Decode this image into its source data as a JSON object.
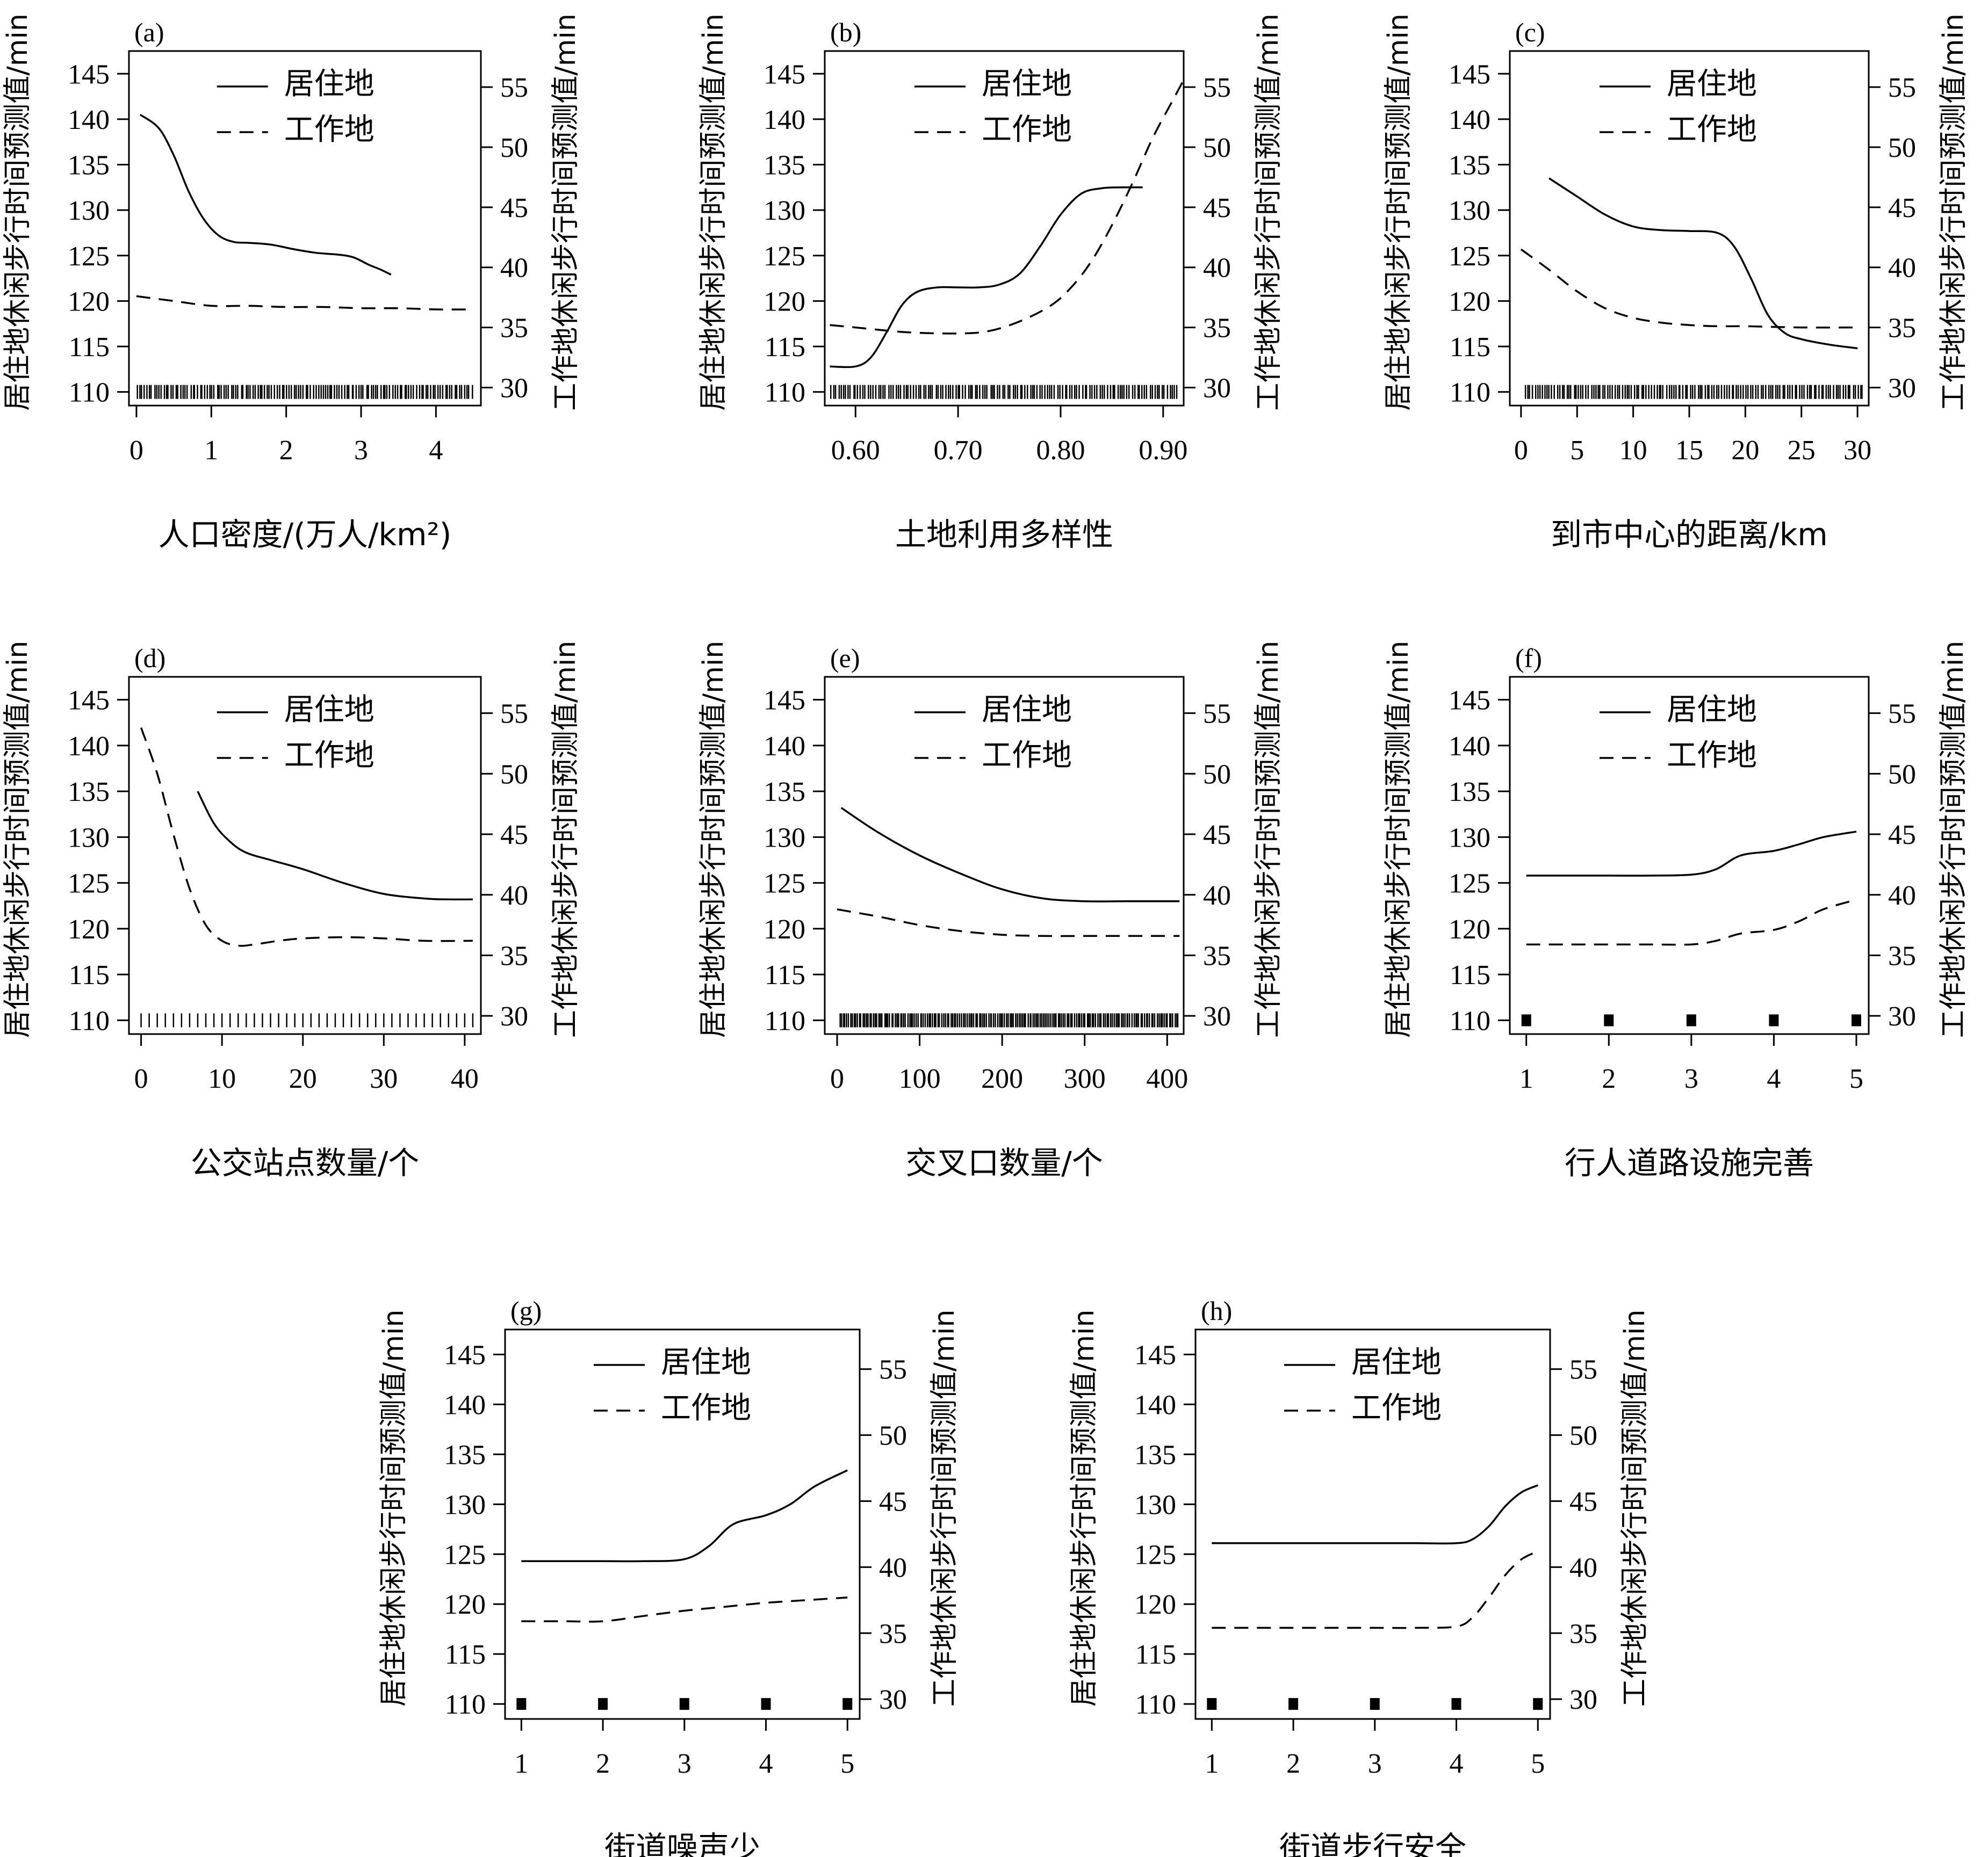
{
  "legend": {
    "residence": "居住地",
    "workplace": "工作地"
  },
  "y_left_label": "居住地休闲步行时间预测值/min",
  "y_right_label": "工作地休闲步行时间预测值/min",
  "colors": {
    "line": "#000000",
    "axis": "#000000",
    "background": "#ffffff"
  },
  "chart_data": [
    {
      "panel": "(a)",
      "type": "line",
      "xlabel": "人口密度/(万人/km²)",
      "xlim": [
        -0.1,
        4.6
      ],
      "xticks": [
        0,
        1,
        2,
        3,
        4
      ],
      "ylim": [
        108.5,
        147.5
      ],
      "yticks": [
        110,
        115,
        120,
        125,
        130,
        135,
        140,
        145
      ],
      "y2lim": [
        28.5,
        58
      ],
      "y2ticks": [
        30,
        35,
        40,
        45,
        50,
        55
      ],
      "series": [
        {
          "name": "居住地",
          "axis": "left",
          "style": "solid",
          "x": [
            0.05,
            0.3,
            0.5,
            0.7,
            0.9,
            1.1,
            1.3,
            1.5,
            1.8,
            2.1,
            2.4,
            2.7,
            2.9,
            3.1,
            3.25,
            3.4
          ],
          "y": [
            140.5,
            139.0,
            136.0,
            132.0,
            129.0,
            127.2,
            126.5,
            126.4,
            126.2,
            125.7,
            125.3,
            125.1,
            124.8,
            124.0,
            123.5,
            122.9
          ]
        },
        {
          "name": "工作地",
          "axis": "right",
          "style": "dashed",
          "x": [
            0.0,
            0.5,
            1.0,
            1.5,
            2.0,
            2.5,
            3.0,
            3.5,
            4.0,
            4.5
          ],
          "y": [
            37.6,
            37.2,
            36.8,
            36.8,
            36.7,
            36.7,
            36.6,
            36.6,
            36.5,
            36.5
          ]
        }
      ],
      "rug": {
        "type": "dense",
        "from": 0.0,
        "to": 4.5,
        "count": 140
      }
    },
    {
      "panel": "(b)",
      "type": "line",
      "xlabel": "土地利用多样性",
      "xlim": [
        0.57,
        0.92
      ],
      "xticks": [
        0.6,
        0.7,
        0.8,
        0.9
      ],
      "ylim": [
        108.5,
        147.5
      ],
      "yticks": [
        110,
        115,
        120,
        125,
        130,
        135,
        140,
        145
      ],
      "y2lim": [
        28.5,
        58
      ],
      "y2ticks": [
        30,
        35,
        40,
        45,
        50,
        55
      ],
      "series": [
        {
          "name": "居住地",
          "axis": "left",
          "style": "solid",
          "x": [
            0.575,
            0.6,
            0.615,
            0.63,
            0.645,
            0.66,
            0.68,
            0.7,
            0.72,
            0.74,
            0.76,
            0.78,
            0.8,
            0.82,
            0.84,
            0.86,
            0.88
          ],
          "y": [
            112.8,
            112.8,
            113.8,
            116.5,
            119.5,
            121.0,
            121.5,
            121.5,
            121.5,
            121.8,
            123.0,
            126.0,
            129.5,
            131.8,
            132.4,
            132.5,
            132.5
          ]
        },
        {
          "name": "工作地",
          "axis": "right",
          "style": "dashed",
          "x": [
            0.575,
            0.6,
            0.65,
            0.7,
            0.73,
            0.76,
            0.79,
            0.81,
            0.83,
            0.85,
            0.87,
            0.89,
            0.91,
            0.92
          ],
          "y": [
            35.2,
            35.0,
            34.6,
            34.5,
            34.7,
            35.5,
            36.8,
            38.3,
            40.5,
            43.5,
            47.0,
            50.8,
            54.0,
            55.6
          ]
        }
      ],
      "rug": {
        "type": "dense",
        "from": 0.575,
        "to": 0.915,
        "count": 140
      }
    },
    {
      "panel": "(c)",
      "type": "line",
      "xlabel": "到市中心的距离/km",
      "xlim": [
        -1,
        31
      ],
      "xticks": [
        0,
        5,
        10,
        15,
        20,
        25,
        30
      ],
      "ylim": [
        108.5,
        147.5
      ],
      "yticks": [
        110,
        115,
        120,
        125,
        130,
        135,
        140,
        145
      ],
      "y2lim": [
        28.5,
        58
      ],
      "y2ticks": [
        30,
        35,
        40,
        45,
        50,
        55
      ],
      "series": [
        {
          "name": "居住地",
          "axis": "left",
          "style": "solid",
          "x": [
            2.5,
            5,
            7.5,
            10,
            12.5,
            15,
            17.5,
            19,
            20.5,
            22,
            23.5,
            25,
            27.5,
            30
          ],
          "y": [
            133.5,
            131.5,
            129.5,
            128.2,
            127.8,
            127.7,
            127.5,
            126.0,
            122.5,
            118.5,
            116.5,
            115.8,
            115.2,
            114.8
          ]
        },
        {
          "name": "工作地",
          "axis": "right",
          "style": "dashed",
          "x": [
            0,
            2.5,
            5,
            7.5,
            10,
            12.5,
            15,
            17.5,
            20,
            25,
            30
          ],
          "y": [
            41.5,
            39.8,
            38.0,
            36.6,
            35.8,
            35.4,
            35.2,
            35.1,
            35.1,
            35.0,
            35.0
          ]
        }
      ],
      "rug": {
        "type": "dense",
        "from": 0.3,
        "to": 30.6,
        "count": 140
      }
    },
    {
      "panel": "(d)",
      "type": "line",
      "xlabel": "公交站点数量/个",
      "xlim": [
        -1.5,
        42
      ],
      "xticks": [
        0,
        10,
        20,
        30,
        40
      ],
      "ylim": [
        108.5,
        147.5
      ],
      "yticks": [
        110,
        115,
        120,
        125,
        130,
        135,
        140,
        145
      ],
      "y2lim": [
        28.5,
        58
      ],
      "y2ticks": [
        30,
        35,
        40,
        45,
        50,
        55
      ],
      "series": [
        {
          "name": "居住地",
          "axis": "left",
          "style": "solid",
          "x": [
            7,
            9,
            11,
            13,
            16,
            20,
            25,
            30,
            35,
            38,
            41
          ],
          "y": [
            135.0,
            131.5,
            129.5,
            128.3,
            127.5,
            126.5,
            125.0,
            123.8,
            123.3,
            123.2,
            123.2
          ]
        },
        {
          "name": "工作地",
          "axis": "right",
          "style": "dashed",
          "x": [
            0,
            2,
            4,
            6,
            8,
            10,
            12,
            14,
            17,
            20,
            25,
            30,
            35,
            41
          ],
          "y": [
            53.8,
            50.0,
            45.0,
            40.5,
            37.5,
            36.2,
            35.8,
            35.9,
            36.2,
            36.4,
            36.5,
            36.4,
            36.2,
            36.2
          ]
        }
      ],
      "rug": {
        "type": "step",
        "from": 0,
        "to": 41,
        "step": 1
      }
    },
    {
      "panel": "(e)",
      "type": "line",
      "xlabel": "交叉口数量/个",
      "xlim": [
        -15,
        420
      ],
      "xticks": [
        0,
        100,
        200,
        300,
        400
      ],
      "ylim": [
        108.5,
        147.5
      ],
      "yticks": [
        110,
        115,
        120,
        125,
        130,
        135,
        140,
        145
      ],
      "y2lim": [
        28.5,
        58
      ],
      "y2ticks": [
        30,
        35,
        40,
        45,
        50,
        55
      ],
      "series": [
        {
          "name": "居住地",
          "axis": "left",
          "style": "solid",
          "x": [
            5,
            50,
            100,
            150,
            200,
            250,
            300,
            350,
            415
          ],
          "y": [
            133.2,
            130.5,
            128.0,
            126.0,
            124.3,
            123.3,
            123.0,
            123.0,
            123.0
          ]
        },
        {
          "name": "工作地",
          "axis": "right",
          "style": "dashed",
          "x": [
            0,
            50,
            100,
            150,
            200,
            250,
            300,
            350,
            415
          ],
          "y": [
            38.8,
            38.2,
            37.5,
            37.0,
            36.7,
            36.6,
            36.6,
            36.6,
            36.6
          ]
        }
      ],
      "rug": {
        "type": "dense",
        "from": 2,
        "to": 415,
        "count": 190
      }
    },
    {
      "panel": "(f)",
      "type": "line",
      "xlabel": "行人道路设施完善",
      "xlim": [
        0.8,
        5.15
      ],
      "xticks": [
        1,
        2,
        3,
        4,
        5
      ],
      "ylim": [
        108.5,
        147.5
      ],
      "yticks": [
        110,
        115,
        120,
        125,
        130,
        135,
        140,
        145
      ],
      "y2lim": [
        28.5,
        58
      ],
      "y2ticks": [
        30,
        35,
        40,
        45,
        50,
        55
      ],
      "series": [
        {
          "name": "居住地",
          "axis": "left",
          "style": "solid",
          "x": [
            1,
            1.5,
            2,
            2.5,
            3,
            3.3,
            3.6,
            4,
            4.3,
            4.6,
            5
          ],
          "y": [
            125.8,
            125.8,
            125.8,
            125.8,
            125.9,
            126.5,
            128.0,
            128.5,
            129.2,
            130.0,
            130.6
          ]
        },
        {
          "name": "工作地",
          "axis": "right",
          "style": "dashed",
          "x": [
            1,
            1.5,
            2,
            2.5,
            3,
            3.3,
            3.6,
            4,
            4.3,
            4.6,
            5
          ],
          "y": [
            35.9,
            35.9,
            35.9,
            35.9,
            35.9,
            36.2,
            36.8,
            37.1,
            37.8,
            38.8,
            39.6
          ]
        }
      ],
      "rug": {
        "type": "discrete",
        "values": [
          1,
          2,
          3,
          4,
          5
        ]
      }
    },
    {
      "panel": "(g)",
      "type": "line",
      "xlabel": "街道噪声少",
      "xlim": [
        0.8,
        5.15
      ],
      "xticks": [
        1,
        2,
        3,
        4,
        5
      ],
      "ylim": [
        108.5,
        147.5
      ],
      "yticks": [
        110,
        115,
        120,
        125,
        130,
        135,
        140,
        145
      ],
      "y2lim": [
        28.5,
        58
      ],
      "y2ticks": [
        30,
        35,
        40,
        45,
        50,
        55
      ],
      "series": [
        {
          "name": "居住地",
          "axis": "left",
          "style": "solid",
          "x": [
            1,
            1.5,
            2,
            2.5,
            3,
            3.3,
            3.6,
            4,
            4.3,
            4.6,
            5
          ],
          "y": [
            124.3,
            124.3,
            124.3,
            124.3,
            124.5,
            125.8,
            128.0,
            128.9,
            130.0,
            131.8,
            133.4
          ]
        },
        {
          "name": "工作地",
          "axis": "right",
          "style": "dashed",
          "x": [
            1,
            1.5,
            2,
            2.5,
            3,
            3.5,
            4,
            4.5,
            5
          ],
          "y": [
            35.9,
            35.9,
            35.9,
            36.3,
            36.7,
            37.0,
            37.3,
            37.5,
            37.7
          ]
        }
      ],
      "rug": {
        "type": "discrete",
        "values": [
          1,
          2,
          3,
          4,
          5
        ]
      }
    },
    {
      "panel": "(h)",
      "type": "line",
      "xlabel": "街道步行安全",
      "xlim": [
        0.8,
        5.15
      ],
      "xticks": [
        1,
        2,
        3,
        4,
        5
      ],
      "ylim": [
        108.5,
        147.5
      ],
      "yticks": [
        110,
        115,
        120,
        125,
        130,
        135,
        140,
        145
      ],
      "y2lim": [
        28.5,
        58
      ],
      "y2ticks": [
        30,
        35,
        40,
        45,
        50,
        55
      ],
      "series": [
        {
          "name": "居住地",
          "axis": "left",
          "style": "solid",
          "x": [
            1,
            1.5,
            2,
            2.5,
            3,
            3.5,
            4,
            4.2,
            4.4,
            4.6,
            4.8,
            5
          ],
          "y": [
            126.1,
            126.1,
            126.1,
            126.1,
            126.1,
            126.1,
            126.1,
            126.5,
            127.8,
            129.8,
            131.2,
            131.9
          ]
        },
        {
          "name": "工作地",
          "axis": "right",
          "style": "dashed",
          "x": [
            1,
            1.5,
            2,
            2.5,
            3,
            3.5,
            4,
            4.2,
            4.4,
            4.6,
            4.8,
            5
          ],
          "y": [
            35.4,
            35.4,
            35.4,
            35.4,
            35.4,
            35.4,
            35.5,
            36.2,
            37.7,
            39.4,
            40.6,
            41.2
          ]
        }
      ],
      "rug": {
        "type": "discrete",
        "values": [
          1,
          2,
          3,
          4,
          5
        ]
      }
    }
  ]
}
